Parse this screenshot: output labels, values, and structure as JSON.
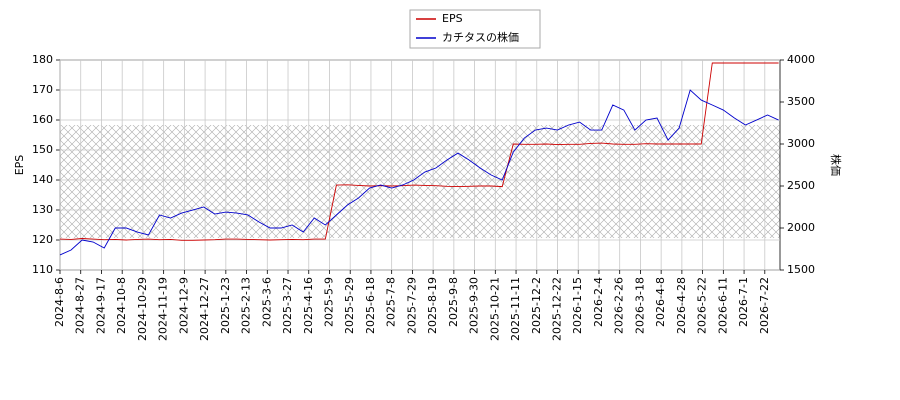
{
  "chart_data": {
    "type": "line",
    "ylabel": "EPS",
    "y2label": "株価",
    "x": [
      0,
      8,
      16,
      24,
      32,
      40,
      48,
      56,
      64,
      72,
      80,
      88,
      96,
      104,
      112,
      120,
      128,
      136,
      144,
      152,
      160,
      168,
      176,
      184,
      192,
      200,
      208,
      216,
      224,
      232,
      240,
      248,
      256,
      264,
      272,
      280,
      288,
      296,
      304,
      312,
      320,
      328,
      336,
      344,
      352,
      360,
      368,
      376,
      384,
      392,
      400,
      408,
      416,
      424,
      432,
      440,
      448,
      456,
      464,
      472,
      480,
      488,
      496,
      504,
      512,
      520
    ],
    "xlim": [
      0,
      521
    ],
    "xticks": [
      {
        "value": 0,
        "label": "2024-8-6"
      },
      {
        "value": 15,
        "label": "2024-8-27"
      },
      {
        "value": 30,
        "label": "2024-9-17"
      },
      {
        "value": 45,
        "label": "2024-10-8"
      },
      {
        "value": 60,
        "label": "2024-10-29"
      },
      {
        "value": 75,
        "label": "2024-11-19"
      },
      {
        "value": 90,
        "label": "2024-12-9"
      },
      {
        "value": 105,
        "label": "2024-12-27"
      },
      {
        "value": 120,
        "label": "2025-1-23"
      },
      {
        "value": 135,
        "label": "2025-2-13"
      },
      {
        "value": 150,
        "label": "2025-3-6"
      },
      {
        "value": 165,
        "label": "2025-3-27"
      },
      {
        "value": 180,
        "label": "2025-4-16"
      },
      {
        "value": 195,
        "label": "2025-5-9"
      },
      {
        "value": 210,
        "label": "2025-5-29"
      },
      {
        "value": 225,
        "label": "2025-6-18"
      },
      {
        "value": 240,
        "label": "2025-7-8"
      },
      {
        "value": 255,
        "label": "2025-7-29"
      },
      {
        "value": 270,
        "label": "2025-8-19"
      },
      {
        "value": 285,
        "label": "2025-9-8"
      },
      {
        "value": 300,
        "label": "2025-9-30"
      },
      {
        "value": 315,
        "label": "2025-10-21"
      },
      {
        "value": 330,
        "label": "2025-11-11"
      },
      {
        "value": 345,
        "label": "2025-12-2"
      },
      {
        "value": 360,
        "label": "2025-12-22"
      },
      {
        "value": 375,
        "label": "2026-1-15"
      },
      {
        "value": 390,
        "label": "2026-2-4"
      },
      {
        "value": 405,
        "label": "2026-2-26"
      },
      {
        "value": 420,
        "label": "2026-3-18"
      },
      {
        "value": 435,
        "label": "2026-4-8"
      },
      {
        "value": 450,
        "label": "2026-4-28"
      },
      {
        "value": 465,
        "label": "2026-5-22"
      },
      {
        "value": 480,
        "label": "2026-6-11"
      },
      {
        "value": 495,
        "label": "2026-7-1"
      },
      {
        "value": 510,
        "label": "2026-7-22"
      }
    ],
    "ylim": [
      110,
      180
    ],
    "yticks": [
      110,
      120,
      130,
      140,
      150,
      160,
      170,
      180
    ],
    "y2lim": [
      1500,
      4000
    ],
    "y2ticks": [
      1500,
      2000,
      2500,
      3000,
      3500,
      4000
    ],
    "grid": true,
    "legend": "top",
    "series": [
      {
        "name": "EPS",
        "color": "#cc0000",
        "values": [
          120.3,
          120.2,
          120.5,
          120.3,
          120.1,
          120.2,
          120.0,
          120.2,
          120.3,
          120.1,
          120.2,
          119.9,
          119.9,
          120.0,
          120.1,
          120.3,
          120.3,
          120.2,
          120.1,
          120.0,
          120.1,
          120.2,
          120.1,
          120.3,
          120.3,
          138.3,
          138.4,
          138.2,
          138.0,
          138.1,
          138.0,
          138.1,
          138.3,
          138.2,
          138.1,
          137.9,
          137.8,
          137.9,
          138.0,
          138.0,
          137.8,
          152.0,
          151.9,
          151.9,
          152.0,
          151.8,
          151.9,
          151.9,
          152.2,
          152.3,
          152.0,
          151.9,
          151.9,
          152.1,
          152.0,
          152.0,
          152.0,
          152.0,
          152.0,
          179.0,
          179.0,
          179.0,
          179.0,
          179.0,
          179.0,
          179.0
        ]
      },
      {
        "name": "カチタスの株価",
        "color": "#0000cc",
        "axis": "y2",
        "values": [
          1679,
          1738,
          1857,
          1833,
          1762,
          2000,
          2000,
          1952,
          1917,
          2155,
          2119,
          2178,
          2214,
          2250,
          2166,
          2190,
          2178,
          2155,
          2071,
          2000,
          2000,
          2036,
          1952,
          2119,
          2036,
          2155,
          2274,
          2357,
          2476,
          2512,
          2476,
          2512,
          2571,
          2666,
          2714,
          2809,
          2892,
          2809,
          2714,
          2631,
          2571,
          2904,
          3071,
          3166,
          3190,
          3166,
          3226,
          3261,
          3166,
          3166,
          3464,
          3404,
          3166,
          3285,
          3309,
          3047,
          3190,
          3642,
          3523,
          3464,
          3404,
          3309,
          3226,
          3285,
          3345,
          3285
        ]
      }
    ]
  }
}
